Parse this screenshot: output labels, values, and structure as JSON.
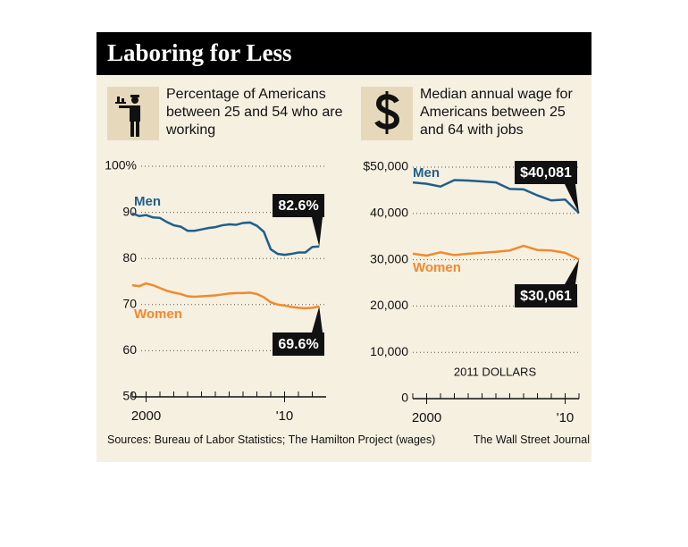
{
  "header": {
    "title": "Laboring for Less"
  },
  "footer": {
    "source": "Sources: Bureau of Labor Statistics; The Hamilton Project (wages)",
    "credit": "The Wall Street Journal"
  },
  "chart_data": [
    {
      "type": "line",
      "title": "Percentage of Americans between 25 and 54 who are working",
      "xlim": [
        1999,
        2013
      ],
      "xticks": [
        2000,
        {
          "value": 2010,
          "label": "'10"
        }
      ],
      "xminorticks": [
        1999,
        2000,
        2001,
        2002,
        2003,
        2004,
        2005,
        2006,
        2007,
        2008,
        2009,
        2010,
        2011,
        2012
      ],
      "ylim": [
        50,
        100
      ],
      "yticks": [
        50,
        60,
        70,
        80,
        90,
        {
          "value": 100,
          "label": "100%"
        }
      ],
      "grid": true,
      "x": [
        1999,
        1999.5,
        2000,
        2000.5,
        2001,
        2001.5,
        2002,
        2002.5,
        2003,
        2003.5,
        2004,
        2004.5,
        2005,
        2005.5,
        2006,
        2006.5,
        2007,
        2007.5,
        2008,
        2008.5,
        2009,
        2009.5,
        2010,
        2010.5,
        2011,
        2011.5,
        2012,
        2012.5
      ],
      "series": [
        {
          "name": "Men",
          "color": "#1f5f8b",
          "values": [
            89.8,
            89.2,
            89.4,
            88.9,
            88.8,
            87.9,
            87.2,
            86.9,
            86.0,
            86.0,
            86.3,
            86.6,
            86.8,
            87.2,
            87.4,
            87.3,
            87.7,
            87.8,
            87.1,
            85.8,
            82.0,
            81.0,
            80.8,
            81.0,
            81.3,
            81.3,
            82.5,
            82.6
          ],
          "value_labels": [
            null,
            null,
            null,
            null,
            null,
            null,
            null,
            null,
            null,
            null,
            null,
            null,
            null,
            null,
            null,
            null,
            null,
            null,
            null,
            null,
            null,
            null,
            null,
            null,
            null,
            null,
            null,
            "82.6%"
          ]
        },
        {
          "name": "Women",
          "color": "#f08a2c",
          "values": [
            74.2,
            74.0,
            74.6,
            74.2,
            73.6,
            73.0,
            72.6,
            72.3,
            71.8,
            71.7,
            71.8,
            71.9,
            72.0,
            72.2,
            72.4,
            72.5,
            72.5,
            72.6,
            72.3,
            71.6,
            70.5,
            70.0,
            69.8,
            69.5,
            69.3,
            69.2,
            69.3,
            69.6
          ],
          "value_labels": [
            null,
            null,
            null,
            null,
            null,
            null,
            null,
            null,
            null,
            null,
            null,
            null,
            null,
            null,
            null,
            null,
            null,
            null,
            null,
            null,
            null,
            null,
            null,
            null,
            null,
            null,
            null,
            "69.6%"
          ]
        }
      ]
    },
    {
      "type": "line",
      "title": "Median annual wage for Americans between 25 and 64 with jobs",
      "annotation": "2011 DOLLARS",
      "xlim": [
        1999,
        2011
      ],
      "xticks": [
        2000,
        {
          "value": 2010,
          "label": "'10"
        }
      ],
      "xminorticks": [
        1999,
        2000,
        2001,
        2002,
        2003,
        2004,
        2005,
        2006,
        2007,
        2008,
        2009,
        2010,
        2011
      ],
      "ylim": [
        0,
        50000
      ],
      "yticks": [
        0,
        {
          "value": 10000,
          "label": "10,000"
        },
        {
          "value": 20000,
          "label": "20,000"
        },
        {
          "value": 30000,
          "label": "30,000"
        },
        {
          "value": 40000,
          "label": "40,000"
        },
        {
          "value": 50000,
          "label": "$50,000"
        }
      ],
      "grid": true,
      "x": [
        1999,
        2000,
        2001,
        2002,
        2003,
        2004,
        2005,
        2006,
        2007,
        2008,
        2009,
        2010,
        2011
      ],
      "series": [
        {
          "name": "Men",
          "color": "#1f5f8b",
          "values": [
            46700,
            46400,
            45800,
            47200,
            47100,
            46900,
            46700,
            45300,
            45200,
            43900,
            42800,
            43000,
            40081
          ],
          "value_labels": [
            null,
            null,
            null,
            null,
            null,
            null,
            null,
            null,
            null,
            null,
            null,
            null,
            "$40,081"
          ]
        },
        {
          "name": "Women",
          "color": "#f08a2c",
          "values": [
            31300,
            30900,
            31600,
            31000,
            31300,
            31500,
            31700,
            32000,
            33000,
            32100,
            32000,
            31500,
            30061
          ],
          "value_labels": [
            null,
            null,
            null,
            null,
            null,
            null,
            null,
            null,
            null,
            null,
            null,
            null,
            "$30,061"
          ]
        }
      ]
    }
  ]
}
